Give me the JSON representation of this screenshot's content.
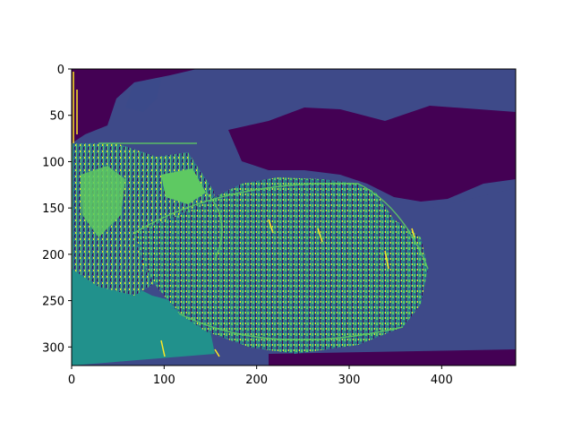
{
  "chart_data": {
    "type": "heatmap",
    "title": "",
    "xlabel": "",
    "ylabel": "",
    "image_size": {
      "width": 480,
      "height": 320
    },
    "xlim": [
      0,
      480
    ],
    "ylim": [
      320,
      0
    ],
    "y_axis_inverted": true,
    "x_ticks": [
      0,
      100,
      200,
      300,
      400
    ],
    "y_ticks": [
      0,
      50,
      100,
      150,
      200,
      250,
      300
    ],
    "x_tick_labels": [
      "0",
      "100",
      "200",
      "300",
      "400"
    ],
    "y_tick_labels": [
      "0",
      "50",
      "100",
      "150",
      "200",
      "250",
      "300"
    ],
    "colormap": "viridis",
    "palette": [
      "#440154",
      "#3b528b",
      "#21918c",
      "#5ec962",
      "#fde725"
    ],
    "grid": false,
    "legend": "none",
    "description_regions": [
      {
        "value_level": 1,
        "kind": "background",
        "color": "#3b4a8a"
      },
      {
        "value_level": 0,
        "kind": "dark-bands",
        "color": "#440154"
      },
      {
        "value_level": 2,
        "kind": "lower-left-fill",
        "color": "#21918c"
      },
      {
        "value_level": 3,
        "kind": "bright-edges",
        "color": "#5ec962"
      },
      {
        "value_level": 4,
        "kind": "highlights",
        "color": "#fde725"
      }
    ]
  }
}
